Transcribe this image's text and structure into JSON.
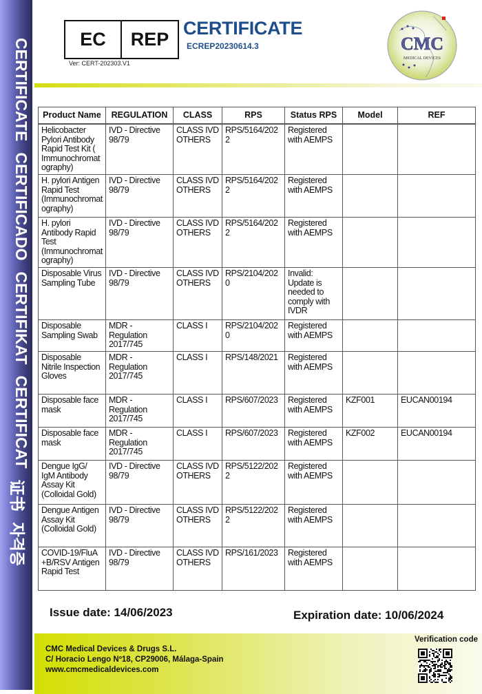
{
  "sidebar": {
    "words": [
      "CERTIFICATE",
      "CERTIFICADO",
      "CERTIFIKAT",
      "CERTIFICAT",
      "证书",
      "자격증"
    ]
  },
  "header": {
    "ec_label": "EC",
    "rep_label": "REP",
    "version": "Ver: CERT-202303.V1",
    "title": "CERTIFICATE",
    "certificate_number": "ECREP20230614.3",
    "logo": {
      "text": "CMC",
      "subtext": "MEDICAL DEVICES"
    }
  },
  "colors": {
    "title_blue": "#1f4e8c",
    "accent_green": "#d3df00",
    "sidebar_purple": "#5a5cae"
  },
  "table": {
    "columns": [
      "Product Name",
      "REGULATION",
      "CLASS",
      "RPS",
      "Status RPS",
      "Model",
      "REF"
    ],
    "rows": [
      [
        "Helicobacter Pylori Antibody Rapid Test Kit ( Immunochromatography)",
        "IVD - Directive 98/79",
        "CLASS IVD OTHERS",
        "RPS/5164/2022",
        "Registered with AEMPS",
        "",
        ""
      ],
      [
        "H. pylori Antigen Rapid Test (Immunochromatography)",
        "IVD - Directive 98/79",
        "CLASS IVD OTHERS",
        "RPS/5164/2022",
        "Registered with AEMPS",
        "",
        ""
      ],
      [
        "H. pylori Antibody Rapid Test (Immunochromatography)",
        "IVD - Directive 98/79",
        "CLASS IVD OTHERS",
        "RPS/5164/2022",
        "Registered with AEMPS",
        "",
        ""
      ],
      [
        "Disposable Virus Sampling Tube",
        "IVD - Directive 98/79",
        "CLASS IVD OTHERS",
        "RPS/2104/2020",
        "Invalid: Update is needed to comply with IVDR",
        "",
        ""
      ],
      [
        "Disposable Sampling Swab",
        "MDR - Regulation 2017/745",
        "CLASS I",
        "RPS/2104/2020",
        "Registered with AEMPS",
        "",
        ""
      ],
      [
        "Disposable Nitrile Inspection Gloves",
        "MDR - Regulation 2017/745",
        "CLASS I",
        "RPS/148/2021",
        "Registered with AEMPS",
        "",
        ""
      ],
      [
        "Disposable face mask",
        "MDR - Regulation 2017/745",
        "CLASS I",
        "RPS/607/2023",
        "Registered with AEMPS",
        "KZF001",
        "EUCAN00194"
      ],
      [
        "Disposable face mask",
        "MDR - Regulation 2017/745",
        "CLASS I",
        "RPS/607/2023",
        "Registered with AEMPS",
        "KZF002",
        "EUCAN00194"
      ],
      [
        "Dengue IgG/ IgM Antibody Assay Kit (Colloidal Gold)",
        "IVD - Directive 98/79",
        "CLASS IVD OTHERS",
        "RPS/5122/2022",
        "Registered with AEMPS",
        "",
        ""
      ],
      [
        "Dengue Antigen Assay Kit (Colloidal Gold)",
        "IVD - Directive 98/79",
        "CLASS IVD OTHERS",
        "RPS/5122/2022",
        "Registered with AEMPS",
        "",
        ""
      ],
      [
        "COVID-19/FluA +B/RSV Antigen Rapid Test",
        "IVD - Directive 98/79",
        "CLASS IVD OTHERS",
        "RPS/161/2023",
        "Registered with AEMPS",
        "",
        ""
      ]
    ]
  },
  "dates": {
    "issue": "Issue date: 14/06/2023",
    "expiration": "Expiration date: 10/06/2024"
  },
  "footer": {
    "company": "CMC Medical Devices & Drugs S.L.",
    "address": "C/ Horacio Lengo Nº18, CP29006, Málaga-Spain",
    "website": "www.cmcmedicaldevices.com",
    "verification_label": "Verification code"
  }
}
